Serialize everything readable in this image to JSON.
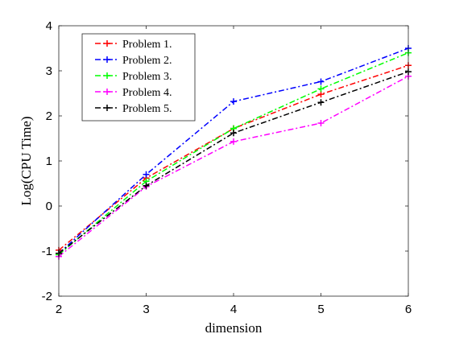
{
  "chart_data": {
    "type": "line",
    "title": "",
    "xlabel": "dimension",
    "ylabel": "Log(CPU Time)",
    "x": [
      2,
      3,
      4,
      5,
      6
    ],
    "xlim": [
      2,
      6
    ],
    "ylim": [
      -2,
      4
    ],
    "xticks": [
      "2",
      "3",
      "4",
      "5",
      "6"
    ],
    "yticks": [
      "-2",
      "-1",
      "0",
      "1",
      "2",
      "3",
      "4"
    ],
    "grid": false,
    "legend_position": "top-left",
    "series": [
      {
        "name": "Problem 1.",
        "color": "#ff0000",
        "dash": "dash-dot",
        "values": [
          -0.98,
          0.62,
          1.72,
          2.48,
          3.12
        ]
      },
      {
        "name": "Problem 2.",
        "color": "#0000ff",
        "dash": "dash-dot",
        "values": [
          -1.05,
          0.7,
          2.32,
          2.76,
          3.5
        ]
      },
      {
        "name": "Problem 3.",
        "color": "#00ff00",
        "dash": "dash-dot",
        "values": [
          -1.08,
          0.55,
          1.72,
          2.6,
          3.4
        ]
      },
      {
        "name": "Problem 4.",
        "color": "#ff00ff",
        "dash": "dash-dot",
        "values": [
          -1.12,
          0.43,
          1.43,
          1.84,
          2.88
        ]
      },
      {
        "name": "Problem 5.",
        "color": "#000000",
        "dash": "dash-dot",
        "values": [
          -1.05,
          0.45,
          1.62,
          2.3,
          2.98
        ]
      }
    ]
  }
}
